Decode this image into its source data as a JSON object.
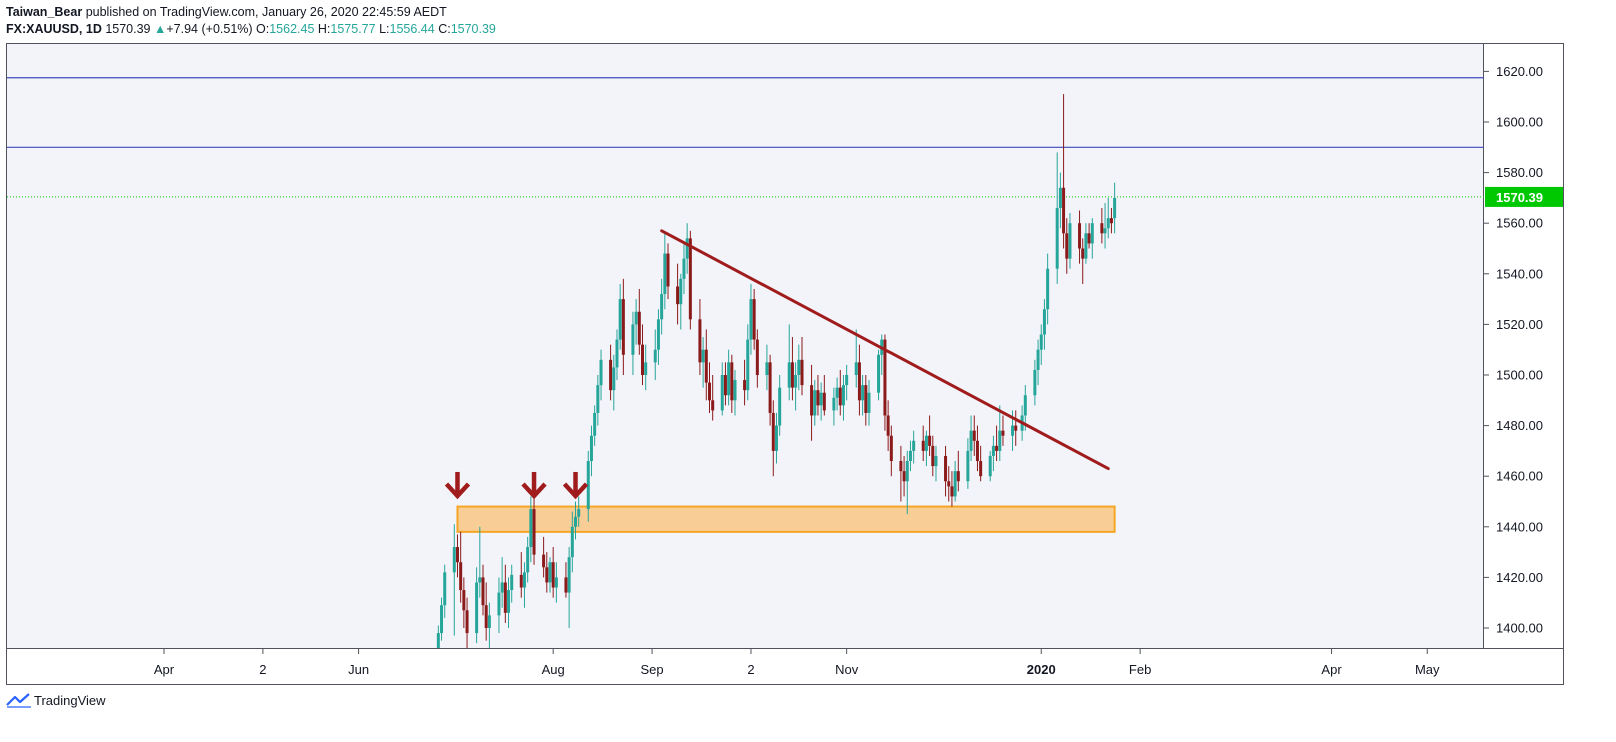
{
  "header": {
    "author": "Taiwan_Bear",
    "published_text": "published on TradingView.com, January 26, 2020 22:45:59 AEDT",
    "symbol": "FX:XAUUSD, 1D",
    "last": "1570.39",
    "change_arrow": "▲",
    "change": "+7.94 (+0.51%)",
    "o_label": "O:",
    "o_value": "1562.45",
    "h_label": "H:",
    "h_value": "1575.77",
    "l_label": "L:",
    "l_value": "1556.44",
    "c_label": "C:",
    "c_value": "1570.39"
  },
  "footer": {
    "brand": "TradingView",
    "logo_icon": "tradingview-logo-icon"
  },
  "colors": {
    "up": "#26a69a",
    "down": "#8b1a1a",
    "trendline": "#a01c1c",
    "hline": "#3f4bbd",
    "zone_fill": "#f9c784",
    "zone_stroke": "#f5a623",
    "last_price": "#00c800",
    "arrow": "#a01c1c",
    "bg": "#f3f3fa"
  },
  "chart_data": {
    "type": "candlestick",
    "y_ticks": [
      "1400.00",
      "1420.00",
      "1440.00",
      "1460.00",
      "1480.00",
      "1500.00",
      "1520.00",
      "1540.00",
      "1560.00",
      "1580.00",
      "1600.00",
      "1620.00"
    ],
    "ylim": [
      1392,
      1632
    ],
    "x_ticks": [
      {
        "label": "Apr",
        "date": "2019-04-01"
      },
      {
        "label": "2",
        "date": "2019-05-02"
      },
      {
        "label": "Jun",
        "date": "2019-06-01"
      },
      {
        "label": "Aug",
        "date": "2019-08-01"
      },
      {
        "label": "Sep",
        "date": "2019-09-01"
      },
      {
        "label": "2",
        "date": "2019-10-02"
      },
      {
        "label": "Nov",
        "date": "2019-11-01"
      },
      {
        "label": "2020",
        "date": "2020-01-01",
        "bold": true
      },
      {
        "label": "Feb",
        "date": "2020-02-01"
      },
      {
        "label": "Apr",
        "date": "2020-04-01"
      },
      {
        "label": "May",
        "date": "2020-05-01"
      }
    ],
    "last_price": 1570.39,
    "last_price_label": "1570.39",
    "horizontal_lines": [
      1617.5,
      1590.0
    ],
    "support_zone": {
      "from": "2019-07-02",
      "to": "2020-01-24",
      "low": 1438,
      "high": 1448
    },
    "trendline": {
      "from": {
        "date": "2019-09-04",
        "price": 1557
      },
      "to": {
        "date": "2020-01-22",
        "price": 1463
      }
    },
    "arrows": [
      {
        "date": "2019-07-02",
        "price": 1451
      },
      {
        "date": "2019-07-26",
        "price": 1451
      },
      {
        "date": "2019-08-08",
        "price": 1451
      }
    ],
    "candles": [
      [
        "2019-06-26",
        1390,
        1401,
        1384,
        1398
      ],
      [
        "2019-06-27",
        1398,
        1412,
        1395,
        1409
      ],
      [
        "2019-06-28",
        1409,
        1425,
        1404,
        1422
      ],
      [
        "2019-07-01",
        1422,
        1441,
        1397,
        1432
      ],
      [
        "2019-07-02",
        1432,
        1437,
        1420,
        1426
      ],
      [
        "2019-07-03",
        1426,
        1438,
        1410,
        1415
      ],
      [
        "2019-07-04",
        1415,
        1420,
        1400,
        1407
      ],
      [
        "2019-07-05",
        1407,
        1412,
        1390,
        1398
      ],
      [
        "2019-07-08",
        1398,
        1424,
        1394,
        1418
      ],
      [
        "2019-07-09",
        1418,
        1440,
        1412,
        1420
      ],
      [
        "2019-07-10",
        1420,
        1425,
        1405,
        1409
      ],
      [
        "2019-07-11",
        1409,
        1418,
        1395,
        1400
      ],
      [
        "2019-07-12",
        1400,
        1410,
        1392,
        1405
      ],
      [
        "2019-07-15",
        1405,
        1420,
        1398,
        1414
      ],
      [
        "2019-07-16",
        1414,
        1428,
        1408,
        1418
      ],
      [
        "2019-07-17",
        1418,
        1425,
        1402,
        1406
      ],
      [
        "2019-07-18",
        1406,
        1420,
        1400,
        1415
      ],
      [
        "2019-07-19",
        1415,
        1425,
        1410,
        1421
      ],
      [
        "2019-07-22",
        1421,
        1430,
        1412,
        1416
      ],
      [
        "2019-07-23",
        1416,
        1426,
        1408,
        1422
      ],
      [
        "2019-07-24",
        1422,
        1436,
        1418,
        1432
      ],
      [
        "2019-07-25",
        1432,
        1452,
        1426,
        1447
      ],
      [
        "2019-07-26",
        1447,
        1452,
        1425,
        1429
      ],
      [
        "2019-07-29",
        1429,
        1436,
        1420,
        1424
      ],
      [
        "2019-07-30",
        1424,
        1430,
        1414,
        1418
      ],
      [
        "2019-07-31",
        1418,
        1428,
        1414,
        1426
      ],
      [
        "2019-08-01",
        1426,
        1432,
        1412,
        1416
      ],
      [
        "2019-08-02",
        1416,
        1426,
        1410,
        1420
      ],
      [
        "2019-08-05",
        1420,
        1426,
        1412,
        1414
      ],
      [
        "2019-08-06",
        1414,
        1432,
        1400,
        1428
      ],
      [
        "2019-08-07",
        1428,
        1446,
        1422,
        1440
      ],
      [
        "2019-08-08",
        1440,
        1450,
        1435,
        1444
      ],
      [
        "2019-08-09",
        1444,
        1452,
        1440,
        1447
      ],
      [
        "2019-08-12",
        1447,
        1470,
        1442,
        1466
      ],
      [
        "2019-08-13",
        1466,
        1480,
        1460,
        1476
      ],
      [
        "2019-08-14",
        1476,
        1488,
        1472,
        1485
      ],
      [
        "2019-08-15",
        1485,
        1500,
        1480,
        1496
      ],
      [
        "2019-08-16",
        1496,
        1510,
        1490,
        1506
      ],
      [
        "2019-08-19",
        1506,
        1512,
        1490,
        1494
      ],
      [
        "2019-08-20",
        1494,
        1508,
        1486,
        1503
      ],
      [
        "2019-08-21",
        1503,
        1518,
        1498,
        1514
      ],
      [
        "2019-08-22",
        1514,
        1536,
        1510,
        1530
      ],
      [
        "2019-08-23",
        1530,
        1538,
        1500,
        1508
      ],
      [
        "2019-08-26",
        1508,
        1525,
        1500,
        1520
      ],
      [
        "2019-08-27",
        1520,
        1530,
        1512,
        1525
      ],
      [
        "2019-08-28",
        1525,
        1534,
        1508,
        1512
      ],
      [
        "2019-08-29",
        1512,
        1520,
        1496,
        1500
      ],
      [
        "2019-08-30",
        1500,
        1512,
        1494,
        1505
      ],
      [
        "2019-09-02",
        1505,
        1518,
        1498,
        1510
      ],
      [
        "2019-09-03",
        1510,
        1526,
        1504,
        1522
      ],
      [
        "2019-09-04",
        1522,
        1538,
        1516,
        1532
      ],
      [
        "2019-09-05",
        1532,
        1556,
        1526,
        1548
      ],
      [
        "2019-09-06",
        1548,
        1552,
        1530,
        1535
      ],
      [
        "2019-09-09",
        1535,
        1544,
        1520,
        1528
      ],
      [
        "2019-09-10",
        1528,
        1540,
        1518,
        1538
      ],
      [
        "2019-09-11",
        1538,
        1552,
        1532,
        1546
      ],
      [
        "2019-09-12",
        1546,
        1560,
        1540,
        1554
      ],
      [
        "2019-09-13",
        1554,
        1557,
        1518,
        1522
      ],
      [
        "2019-09-16",
        1522,
        1530,
        1500,
        1505
      ],
      [
        "2019-09-17",
        1505,
        1515,
        1495,
        1510
      ],
      [
        "2019-09-18",
        1510,
        1518,
        1490,
        1497
      ],
      [
        "2019-09-19",
        1497,
        1505,
        1485,
        1490
      ],
      [
        "2019-09-20",
        1490,
        1500,
        1482,
        1486
      ],
      [
        "2019-09-23",
        1486,
        1505,
        1484,
        1500
      ],
      [
        "2019-09-24",
        1500,
        1505,
        1488,
        1492
      ],
      [
        "2019-09-25",
        1492,
        1510,
        1488,
        1505
      ],
      [
        "2019-09-26",
        1505,
        1508,
        1485,
        1490
      ],
      [
        "2019-09-27",
        1490,
        1502,
        1484,
        1498
      ],
      [
        "2019-09-30",
        1498,
        1506,
        1488,
        1494
      ],
      [
        "2019-10-01",
        1494,
        1520,
        1490,
        1514
      ],
      [
        "2019-10-02",
        1514,
        1536,
        1508,
        1530
      ],
      [
        "2019-10-03",
        1530,
        1534,
        1510,
        1514
      ],
      [
        "2019-10-04",
        1514,
        1518,
        1495,
        1500
      ],
      [
        "2019-10-07",
        1500,
        1512,
        1494,
        1505
      ],
      [
        "2019-10-08",
        1505,
        1508,
        1480,
        1485
      ],
      [
        "2019-10-09",
        1485,
        1490,
        1460,
        1470
      ],
      [
        "2019-10-10",
        1470,
        1485,
        1465,
        1480
      ],
      [
        "2019-10-11",
        1480,
        1500,
        1476,
        1495
      ],
      [
        "2019-10-14",
        1495,
        1520,
        1490,
        1505
      ],
      [
        "2019-10-15",
        1505,
        1515,
        1490,
        1495
      ],
      [
        "2019-10-16",
        1495,
        1505,
        1486,
        1500
      ],
      [
        "2019-10-17",
        1500,
        1512,
        1494,
        1506
      ],
      [
        "2019-10-18",
        1506,
        1515,
        1492,
        1496
      ],
      [
        "2019-10-21",
        1496,
        1504,
        1474,
        1484
      ],
      [
        "2019-10-22",
        1484,
        1498,
        1480,
        1494
      ],
      [
        "2019-10-23",
        1494,
        1500,
        1484,
        1488
      ],
      [
        "2019-10-24",
        1488,
        1497,
        1482,
        1493
      ],
      [
        "2019-10-25",
        1493,
        1500,
        1484,
        1486
      ],
      [
        "2019-10-28",
        1486,
        1495,
        1480,
        1491
      ],
      [
        "2019-10-29",
        1491,
        1499,
        1486,
        1495
      ],
      [
        "2019-10-30",
        1495,
        1502,
        1484,
        1488
      ],
      [
        "2019-10-31",
        1488,
        1500,
        1482,
        1496
      ],
      [
        "2019-11-01",
        1496,
        1504,
        1490,
        1500
      ],
      [
        "2019-11-04",
        1500,
        1518,
        1495,
        1505
      ],
      [
        "2019-11-05",
        1505,
        1512,
        1484,
        1490
      ],
      [
        "2019-11-06",
        1490,
        1500,
        1484,
        1496
      ],
      [
        "2019-11-07",
        1496,
        1500,
        1480,
        1485
      ],
      [
        "2019-11-08",
        1485,
        1498,
        1480,
        1493
      ],
      [
        "2019-11-11",
        1493,
        1510,
        1490,
        1508
      ],
      [
        "2019-11-12",
        1508,
        1516,
        1500,
        1514
      ],
      [
        "2019-11-13",
        1514,
        1516,
        1478,
        1484
      ],
      [
        "2019-11-14",
        1484,
        1490,
        1470,
        1476
      ],
      [
        "2019-11-15",
        1476,
        1480,
        1460,
        1466
      ],
      [
        "2019-11-18",
        1466,
        1472,
        1450,
        1462
      ],
      [
        "2019-11-19",
        1462,
        1468,
        1452,
        1458
      ],
      [
        "2019-11-20",
        1458,
        1470,
        1445,
        1466
      ],
      [
        "2019-11-21",
        1466,
        1474,
        1462,
        1470
      ],
      [
        "2019-11-22",
        1470,
        1478,
        1465,
        1474
      ],
      [
        "2019-11-25",
        1474,
        1480,
        1466,
        1470
      ],
      [
        "2019-11-26",
        1470,
        1478,
        1464,
        1476
      ],
      [
        "2019-11-27",
        1476,
        1484,
        1468,
        1472
      ],
      [
        "2019-11-28",
        1472,
        1476,
        1460,
        1464
      ],
      [
        "2019-11-29",
        1464,
        1472,
        1458,
        1468
      ],
      [
        "2019-12-02",
        1468,
        1472,
        1452,
        1458
      ],
      [
        "2019-12-03",
        1458,
        1464,
        1450,
        1456
      ],
      [
        "2019-12-04",
        1456,
        1462,
        1448,
        1452
      ],
      [
        "2019-12-05",
        1452,
        1466,
        1450,
        1462
      ],
      [
        "2019-12-06",
        1462,
        1470,
        1454,
        1458
      ],
      [
        "2019-12-09",
        1458,
        1475,
        1455,
        1470
      ],
      [
        "2019-12-10",
        1470,
        1484,
        1466,
        1478
      ],
      [
        "2019-12-11",
        1478,
        1484,
        1468,
        1474
      ],
      [
        "2019-12-12",
        1474,
        1480,
        1462,
        1466
      ],
      [
        "2019-12-13",
        1466,
        1472,
        1458,
        1460
      ],
      [
        "2019-12-16",
        1460,
        1470,
        1458,
        1468
      ],
      [
        "2019-12-17",
        1468,
        1476,
        1462,
        1472
      ],
      [
        "2019-12-18",
        1472,
        1480,
        1466,
        1470
      ],
      [
        "2019-12-19",
        1470,
        1488,
        1466,
        1478
      ],
      [
        "2019-12-20",
        1478,
        1484,
        1472,
        1476
      ],
      [
        "2019-12-23",
        1476,
        1486,
        1470,
        1480
      ],
      [
        "2019-12-24",
        1480,
        1486,
        1472,
        1478
      ],
      [
        "2019-12-26",
        1478,
        1488,
        1474,
        1484
      ],
      [
        "2019-12-27",
        1484,
        1496,
        1478,
        1492
      ],
      [
        "2019-12-30",
        1492,
        1506,
        1488,
        1502
      ],
      [
        "2019-12-31",
        1502,
        1514,
        1496,
        1510
      ],
      [
        "2020-01-01",
        1510,
        1520,
        1504,
        1516
      ],
      [
        "2020-01-02",
        1516,
        1530,
        1510,
        1526
      ],
      [
        "2020-01-03",
        1526,
        1548,
        1520,
        1542
      ],
      [
        "2020-01-06",
        1542,
        1588,
        1536,
        1566
      ],
      [
        "2020-01-07",
        1566,
        1580,
        1558,
        1574
      ],
      [
        "2020-01-08",
        1574,
        1611,
        1550,
        1556
      ],
      [
        "2020-01-09",
        1556,
        1562,
        1540,
        1546
      ],
      [
        "2020-01-10",
        1546,
        1564,
        1542,
        1560
      ],
      [
        "2020-01-13",
        1560,
        1565,
        1544,
        1550
      ],
      [
        "2020-01-14",
        1550,
        1554,
        1536,
        1546
      ],
      [
        "2020-01-15",
        1546,
        1560,
        1544,
        1556
      ],
      [
        "2020-01-16",
        1556,
        1560,
        1550,
        1552
      ],
      [
        "2020-01-17",
        1552,
        1562,
        1546,
        1560
      ],
      [
        "2020-01-20",
        1560,
        1566,
        1552,
        1556
      ],
      [
        "2020-01-21",
        1556,
        1568,
        1550,
        1558
      ],
      [
        "2020-01-22",
        1558,
        1570,
        1554,
        1562
      ],
      [
        "2020-01-23",
        1562,
        1566,
        1556,
        1560
      ],
      [
        "2020-01-24",
        1562,
        1576,
        1556,
        1570
      ]
    ]
  }
}
